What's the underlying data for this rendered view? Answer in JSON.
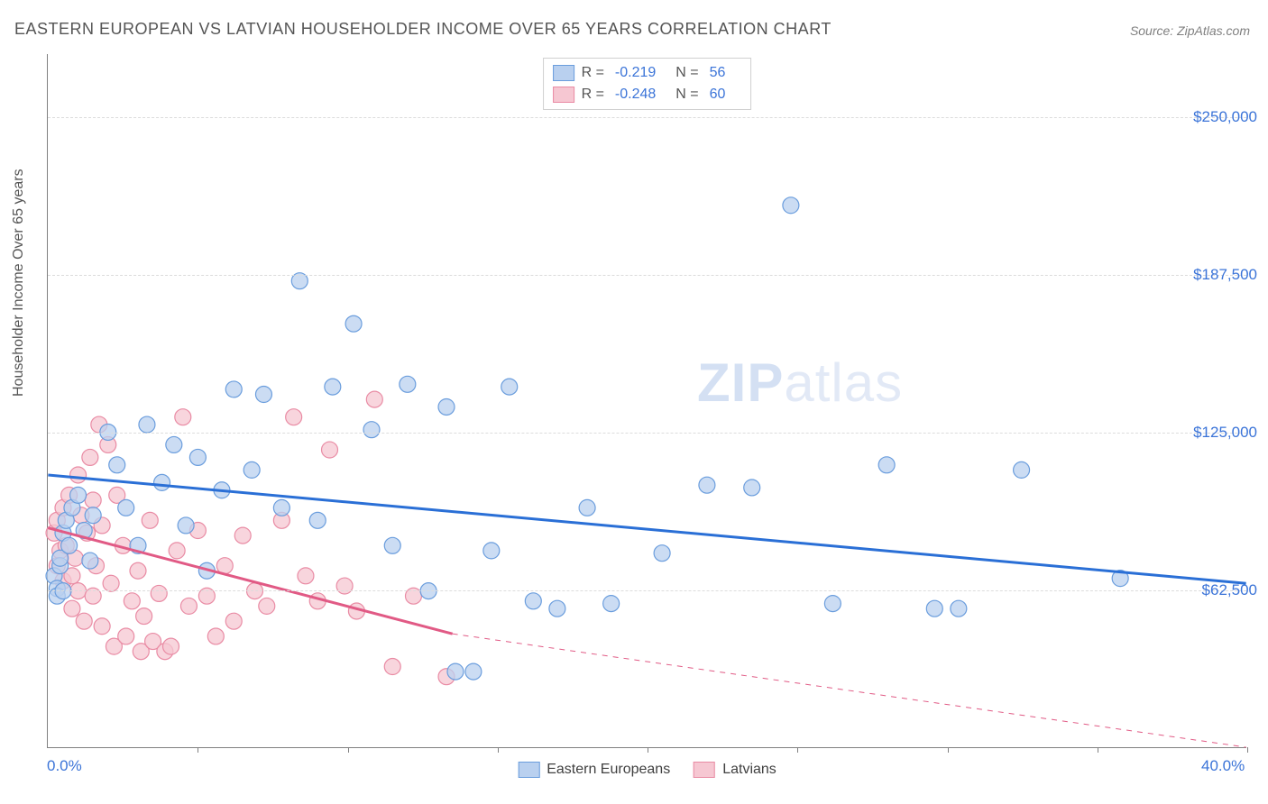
{
  "title": "EASTERN EUROPEAN VS LATVIAN HOUSEHOLDER INCOME OVER 65 YEARS CORRELATION CHART",
  "source": "Source: ZipAtlas.com",
  "ylabel": "Householder Income Over 65 years",
  "watermark_zip": "ZIP",
  "watermark_atlas": "atlas",
  "chart": {
    "type": "scatter",
    "xlim": [
      0,
      40
    ],
    "ylim": [
      0,
      275000
    ],
    "x_tick_positions": [
      0,
      5,
      10,
      15,
      20,
      25,
      30,
      35,
      40
    ],
    "x_axis_labels": [
      {
        "x": 0,
        "text": "0.0%"
      },
      {
        "x": 40,
        "text": "40.0%"
      }
    ],
    "y_gridlines": [
      62500,
      125000,
      187500,
      250000
    ],
    "y_tick_labels": [
      "$62,500",
      "$125,000",
      "$187,500",
      "$250,000"
    ],
    "background_color": "#ffffff",
    "grid_color": "#dcdcdc",
    "axis_color": "#808080",
    "label_color": "#3b74d8",
    "marker_radius": 9,
    "marker_stroke_width": 1.2,
    "trend_line_width": 3,
    "trend_dash_width": 1,
    "series": [
      {
        "name": "Eastern Europeans",
        "fill_color": "#b9d0ef",
        "stroke_color": "#6a9ddd",
        "line_color": "#2a6fd6",
        "R": "-0.219",
        "N": "56",
        "trend_solid": {
          "x1": 0,
          "y1": 108000,
          "x2": 40,
          "y2": 65000
        },
        "points": [
          [
            0.2,
            68000
          ],
          [
            0.3,
            63000
          ],
          [
            0.4,
            72000
          ],
          [
            0.5,
            85000
          ],
          [
            0.6,
            90000
          ],
          [
            0.3,
            60000
          ],
          [
            0.5,
            62000
          ],
          [
            0.4,
            75000
          ],
          [
            0.7,
            80000
          ],
          [
            0.8,
            95000
          ],
          [
            1.0,
            100000
          ],
          [
            1.2,
            86000
          ],
          [
            1.4,
            74000
          ],
          [
            1.5,
            92000
          ],
          [
            2.0,
            125000
          ],
          [
            2.3,
            112000
          ],
          [
            2.6,
            95000
          ],
          [
            3.0,
            80000
          ],
          [
            3.3,
            128000
          ],
          [
            3.8,
            105000
          ],
          [
            4.2,
            120000
          ],
          [
            4.6,
            88000
          ],
          [
            5.0,
            115000
          ],
          [
            5.3,
            70000
          ],
          [
            5.8,
            102000
          ],
          [
            6.2,
            142000
          ],
          [
            6.8,
            110000
          ],
          [
            7.2,
            140000
          ],
          [
            7.8,
            95000
          ],
          [
            8.4,
            185000
          ],
          [
            9.0,
            90000
          ],
          [
            9.5,
            143000
          ],
          [
            10.2,
            168000
          ],
          [
            10.8,
            126000
          ],
          [
            11.5,
            80000
          ],
          [
            12.0,
            144000
          ],
          [
            12.7,
            62000
          ],
          [
            13.3,
            135000
          ],
          [
            13.6,
            30000
          ],
          [
            14.2,
            30000
          ],
          [
            14.8,
            78000
          ],
          [
            15.4,
            143000
          ],
          [
            16.2,
            58000
          ],
          [
            17.0,
            55000
          ],
          [
            18.0,
            95000
          ],
          [
            18.8,
            57000
          ],
          [
            20.5,
            77000
          ],
          [
            22.0,
            104000
          ],
          [
            23.5,
            103000
          ],
          [
            24.8,
            215000
          ],
          [
            26.2,
            57000
          ],
          [
            28.0,
            112000
          ],
          [
            29.6,
            55000
          ],
          [
            30.4,
            55000
          ],
          [
            32.5,
            110000
          ],
          [
            35.8,
            67000
          ]
        ]
      },
      {
        "name": "Latvians",
        "fill_color": "#f6c7d2",
        "stroke_color": "#e98ba4",
        "line_color": "#e15a85",
        "R": "-0.248",
        "N": "60",
        "trend_solid": {
          "x1": 0,
          "y1": 87000,
          "x2": 13.5,
          "y2": 45000
        },
        "trend_dashed": {
          "x1": 13.5,
          "y1": 45000,
          "x2": 40,
          "y2": 0
        },
        "points": [
          [
            0.2,
            85000
          ],
          [
            0.3,
            90000
          ],
          [
            0.4,
            78000
          ],
          [
            0.3,
            72000
          ],
          [
            0.5,
            95000
          ],
          [
            0.5,
            66000
          ],
          [
            0.6,
            80000
          ],
          [
            0.7,
            100000
          ],
          [
            0.8,
            68000
          ],
          [
            0.8,
            55000
          ],
          [
            0.9,
            75000
          ],
          [
            1.0,
            108000
          ],
          [
            1.0,
            62000
          ],
          [
            1.1,
            92000
          ],
          [
            1.2,
            50000
          ],
          [
            1.3,
            85000
          ],
          [
            1.4,
            115000
          ],
          [
            1.5,
            60000
          ],
          [
            1.5,
            98000
          ],
          [
            1.6,
            72000
          ],
          [
            1.7,
            128000
          ],
          [
            1.8,
            48000
          ],
          [
            1.8,
            88000
          ],
          [
            2.0,
            120000
          ],
          [
            2.1,
            65000
          ],
          [
            2.2,
            40000
          ],
          [
            2.3,
            100000
          ],
          [
            2.5,
            80000
          ],
          [
            2.6,
            44000
          ],
          [
            2.8,
            58000
          ],
          [
            3.0,
            70000
          ],
          [
            3.1,
            38000
          ],
          [
            3.2,
            52000
          ],
          [
            3.4,
            90000
          ],
          [
            3.5,
            42000
          ],
          [
            3.7,
            61000
          ],
          [
            3.9,
            38000
          ],
          [
            4.1,
            40000
          ],
          [
            4.3,
            78000
          ],
          [
            4.5,
            131000
          ],
          [
            4.7,
            56000
          ],
          [
            5.0,
            86000
          ],
          [
            5.3,
            60000
          ],
          [
            5.6,
            44000
          ],
          [
            5.9,
            72000
          ],
          [
            6.2,
            50000
          ],
          [
            6.5,
            84000
          ],
          [
            6.9,
            62000
          ],
          [
            7.3,
            56000
          ],
          [
            7.8,
            90000
          ],
          [
            8.2,
            131000
          ],
          [
            8.6,
            68000
          ],
          [
            9.0,
            58000
          ],
          [
            9.4,
            118000
          ],
          [
            9.9,
            64000
          ],
          [
            10.3,
            54000
          ],
          [
            10.9,
            138000
          ],
          [
            11.5,
            32000
          ],
          [
            12.2,
            60000
          ],
          [
            13.3,
            28000
          ]
        ]
      }
    ],
    "legend_bottom": [
      {
        "label": "Eastern Europeans",
        "fill": "#b9d0ef",
        "stroke": "#6a9ddd"
      },
      {
        "label": "Latvians",
        "fill": "#f6c7d2",
        "stroke": "#e98ba4"
      }
    ]
  }
}
